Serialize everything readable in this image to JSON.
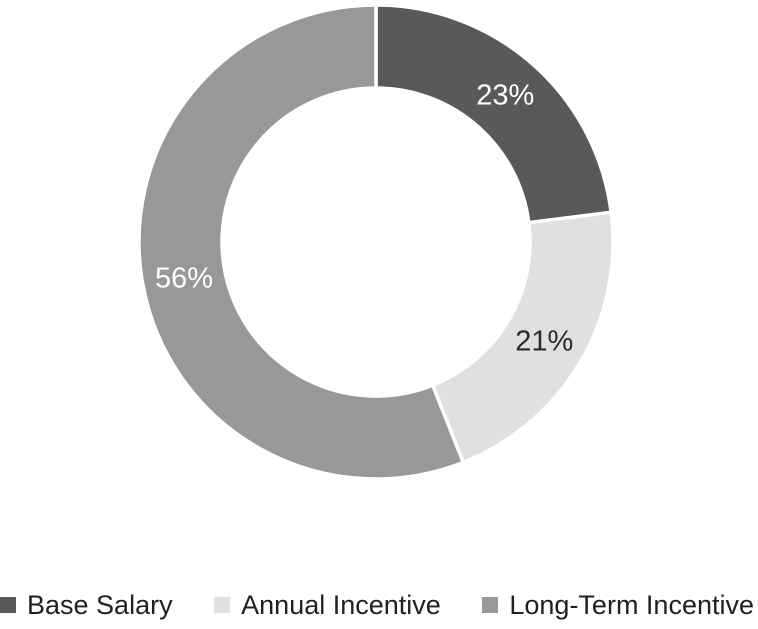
{
  "chart_data": {
    "type": "pie",
    "subtype": "donut",
    "title": "",
    "start_angle_deg": 0,
    "direction": "clockwise",
    "donut_hole_ratio": 0.65,
    "separator_color": "#ffffff",
    "legend_position": "bottom",
    "slices": [
      {
        "label": "Base Salary",
        "value": 23,
        "display": "23%",
        "color": "#58595b",
        "label_color": "#ffffff"
      },
      {
        "label": "Annual Incentive",
        "value": 21,
        "display": "21%",
        "color": "#e0e0e1",
        "label_color": "#2b2b2d"
      },
      {
        "label": "Long-Term Incentive",
        "value": 56,
        "display": "56%",
        "color": "#97989a",
        "label_color": "#ffffff"
      }
    ]
  }
}
